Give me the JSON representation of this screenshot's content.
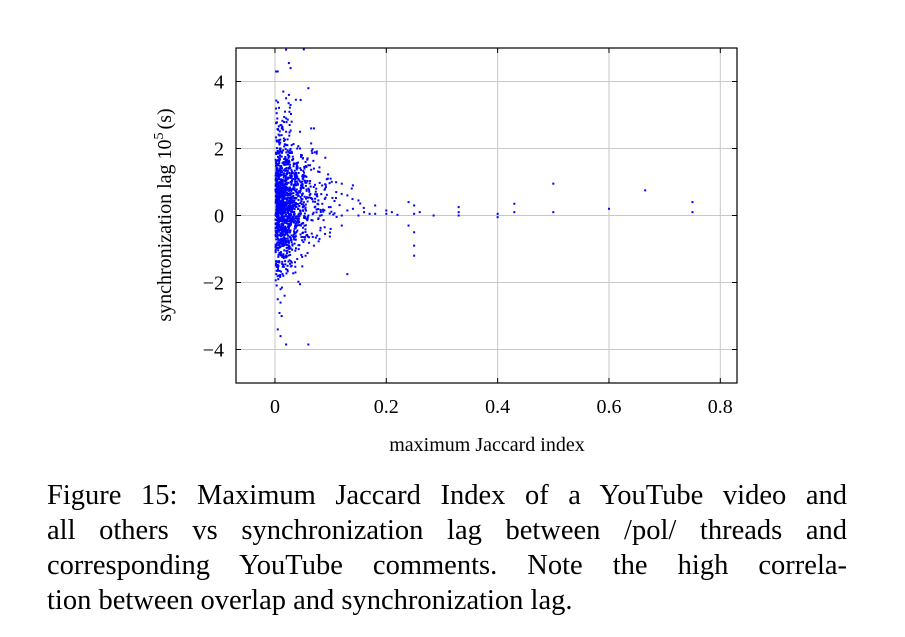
{
  "chart_data": {
    "type": "scatter",
    "title": "",
    "xlabel": "maximum Jaccard index",
    "ylabel_text": "synchronization lag 10",
    "ylabel_exponent": "5",
    "ylabel_suffix": "(s)",
    "xlim": [
      -0.07,
      0.83
    ],
    "ylim": [
      -5,
      5
    ],
    "x_ticks": [
      {
        "value": 0,
        "label": "0"
      },
      {
        "value": 0.2,
        "label": "0.2"
      },
      {
        "value": 0.4,
        "label": "0.4"
      },
      {
        "value": 0.6,
        "label": "0.6"
      },
      {
        "value": 0.8,
        "label": "0.8"
      }
    ],
    "y_ticks": [
      {
        "value": -4,
        "label": "−4"
      },
      {
        "value": -2,
        "label": "−2"
      },
      {
        "value": 0,
        "label": "0"
      },
      {
        "value": 2,
        "label": "2"
      },
      {
        "value": 4,
        "label": "4"
      }
    ],
    "grid": true,
    "legend": "none",
    "series": [
      {
        "color": "#0000ff",
        "points": [
          [
            0.005,
            4.3
          ],
          [
            0.02,
            4.95
          ],
          [
            0.025,
            4.55
          ],
          [
            0.028,
            4.4
          ],
          [
            0.06,
            3.8
          ],
          [
            0.015,
            3.7
          ],
          [
            0.02,
            3.5
          ],
          [
            0.025,
            3.6
          ],
          [
            0.028,
            3.3
          ],
          [
            0.018,
            3.1
          ],
          [
            0.02,
            2.9
          ],
          [
            0.03,
            2.8
          ],
          [
            0.065,
            2.6
          ],
          [
            0.07,
            2.6
          ],
          [
            0.045,
            2.5
          ],
          [
            0.01,
            2.7
          ],
          [
            0.012,
            2.4
          ],
          [
            0.016,
            2.3
          ],
          [
            0.02,
            2.5
          ],
          [
            0.03,
            2.1
          ],
          [
            0.04,
            2.0
          ],
          [
            0.045,
            2.0
          ],
          [
            0.075,
            1.85
          ],
          [
            0.05,
            1.7
          ],
          [
            0.055,
            1.6
          ],
          [
            0.06,
            1.5
          ],
          [
            0.07,
            1.4
          ],
          [
            0.08,
            1.3
          ],
          [
            0.095,
            1.1
          ],
          [
            0.1,
            1.1
          ],
          [
            0.12,
            0.95
          ],
          [
            0.14,
            0.9
          ],
          [
            0.09,
            0.8
          ],
          [
            0.11,
            0.7
          ],
          [
            0.13,
            0.6
          ],
          [
            0.15,
            0.45
          ],
          [
            0.18,
            0.3
          ],
          [
            0.21,
            0.1
          ],
          [
            0.24,
            0.4
          ],
          [
            0.25,
            0.3
          ],
          [
            0.2,
            0.15
          ],
          [
            0.2,
            0.05
          ],
          [
            0.25,
            0.05
          ],
          [
            0.26,
            0.1
          ],
          [
            0.285,
            0.0
          ],
          [
            0.33,
            0.25
          ],
          [
            0.33,
            0.1
          ],
          [
            0.33,
            0.0
          ],
          [
            0.4,
            0.05
          ],
          [
            0.4,
            -0.05
          ],
          [
            0.43,
            0.35
          ],
          [
            0.43,
            0.1
          ],
          [
            0.5,
            0.95
          ],
          [
            0.5,
            0.1
          ],
          [
            0.6,
            0.2
          ],
          [
            0.665,
            0.75
          ],
          [
            0.75,
            0.4
          ],
          [
            0.75,
            0.1
          ],
          [
            0.25,
            -0.5
          ],
          [
            0.25,
            -0.9
          ],
          [
            0.25,
            -1.2
          ],
          [
            0.24,
            -0.3
          ],
          [
            0.13,
            -1.75
          ],
          [
            0.01,
            -2.2
          ],
          [
            0.005,
            -2.5
          ],
          [
            0.01,
            -2.6
          ],
          [
            0.012,
            -3.0
          ],
          [
            0.005,
            -3.4
          ],
          [
            0.01,
            -3.6
          ],
          [
            0.02,
            -3.85
          ],
          [
            0.06,
            -3.85
          ],
          [
            0.015,
            -1.8
          ],
          [
            0.02,
            -1.6
          ],
          [
            0.03,
            -1.5
          ],
          [
            0.04,
            -1.3
          ],
          [
            0.045,
            -2.05
          ],
          [
            0.055,
            -1.2
          ],
          [
            0.07,
            -0.9
          ],
          [
            0.08,
            -0.7
          ],
          [
            0.09,
            -0.55
          ],
          [
            0.1,
            -0.4
          ],
          [
            0.12,
            -0.3
          ],
          [
            0.003,
            -1.65
          ],
          [
            0.008,
            -1.4
          ],
          [
            0.006,
            -1.9
          ],
          [
            0.16,
            0.1
          ],
          [
            0.17,
            0.05
          ],
          [
            0.14,
            0.2
          ],
          [
            0.12,
            0.0
          ],
          [
            0.1,
            0.25
          ],
          [
            0.085,
            0.35
          ],
          [
            0.15,
            0.0
          ],
          [
            0.18,
            0.05
          ],
          [
            0.22,
            0.02
          ],
          [
            0.13,
            0.15
          ]
        ]
      }
    ],
    "cluster": {
      "count": 1400,
      "seed": 12345
    }
  },
  "caption": {
    "line1": "Figure 15: Maximum Jaccard Index of a YouTube video and",
    "line2": "all others vs synchronization lag between /pol/ threads and",
    "line3": "corresponding YouTube comments. Note the high correla-",
    "line4": "tion between overlap and synchronization lag."
  }
}
